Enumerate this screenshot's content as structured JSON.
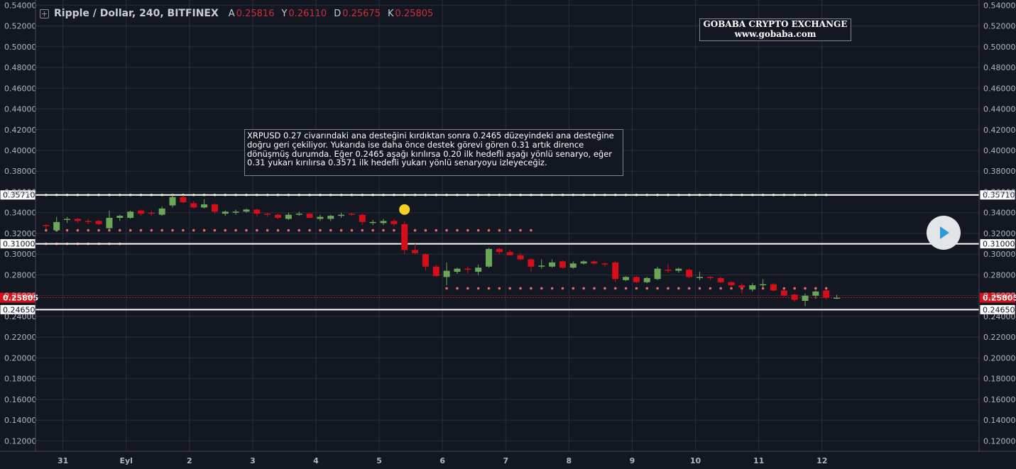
{
  "header": {
    "title": "Ripple / Dollar, 240, BITFINEX",
    "ohlc": [
      {
        "key": "A",
        "value": "0.25816"
      },
      {
        "key": "Y",
        "value": "0.26110"
      },
      {
        "key": "D",
        "value": "0.25675"
      },
      {
        "key": "K",
        "value": "0.25805"
      }
    ]
  },
  "watermark": {
    "line1": "GOBABA CRYPTO EXCHANGE",
    "line2": "www.gobaba.com"
  },
  "annotation": "XRPUSD 0.27 civarındaki ana desteğini kırdıktan sonra 0.2465 düzeyindeki ana desteğine doğru geri çekiliyor. Yukarıda ise daha önce destek görevi gören 0.31 artık dirence dönüşmüş durumda. Eğer 0.2465 aşağı kırılırsa 0.20 ilk hedefli aşağı yönlü senaryo, eğer 0.31 yukarı kırılırsa 0.3571 ilk hedefli yukarı yönlü senaryoyu izleyeceğiz.",
  "colors": {
    "background": "#131722",
    "grid": "#2a2e39",
    "up": "#6ba759",
    "down": "#d60e17",
    "level": "#ffffff",
    "dot_green": "#8fcf73",
    "dot_red": "#e06868",
    "marker": "#f4d21f"
  },
  "chart_data": {
    "type": "candlestick",
    "ylim": [
      0.11,
      0.545
    ],
    "xlim": [
      -1.0,
      88.5
    ],
    "price_axis_ticks": [
      "0.54000",
      "0.52000",
      "0.50000",
      "0.48000",
      "0.46000",
      "0.44000",
      "0.42000",
      "0.40000",
      "0.38000",
      "0.36000",
      "0.34000",
      "0.32000",
      "0.30000",
      "0.28000",
      "0.26000",
      "0.24000",
      "0.22000",
      "0.20000",
      "0.18000",
      "0.16000",
      "0.14000",
      "0.12000"
    ],
    "time_axis_ticks": [
      {
        "label": "31",
        "x": 1.6
      },
      {
        "label": "Eyl",
        "x": 7.6
      },
      {
        "label": "2",
        "x": 13.6
      },
      {
        "label": "3",
        "x": 19.6
      },
      {
        "label": "4",
        "x": 25.6
      },
      {
        "label": "5",
        "x": 31.6
      },
      {
        "label": "6",
        "x": 37.6
      },
      {
        "label": "7",
        "x": 43.6
      },
      {
        "label": "8",
        "x": 49.6
      },
      {
        "label": "9",
        "x": 55.6
      },
      {
        "label": "10",
        "x": 61.6
      },
      {
        "label": "11",
        "x": 67.6
      },
      {
        "label": "12",
        "x": 73.6
      }
    ],
    "horizontal_levels": [
      {
        "value": 0.3571,
        "label": "0.35710"
      },
      {
        "value": 0.31,
        "label": "0.31000"
      },
      {
        "value": 0.2465,
        "label": "0.24650"
      }
    ],
    "last_price": {
      "value": 0.25805,
      "label": "0.25805"
    },
    "candles": [
      [
        0.328,
        0.329,
        0.324,
        0.327
      ],
      [
        0.323,
        0.336,
        0.322,
        0.331
      ],
      [
        0.333,
        0.336,
        0.33,
        0.334
      ],
      [
        0.334,
        0.335,
        0.33,
        0.332
      ],
      [
        0.332,
        0.334,
        0.329,
        0.331
      ],
      [
        0.332,
        0.333,
        0.328,
        0.329
      ],
      [
        0.325,
        0.342,
        0.324,
        0.335
      ],
      [
        0.335,
        0.338,
        0.332,
        0.337
      ],
      [
        0.335,
        0.342,
        0.334,
        0.341
      ],
      [
        0.342,
        0.343,
        0.337,
        0.339
      ],
      [
        0.34,
        0.342,
        0.337,
        0.339
      ],
      [
        0.338,
        0.346,
        0.337,
        0.344
      ],
      [
        0.347,
        0.358,
        0.345,
        0.355
      ],
      [
        0.355,
        0.357,
        0.349,
        0.35
      ],
      [
        0.349,
        0.351,
        0.344,
        0.345
      ],
      [
        0.345,
        0.353,
        0.344,
        0.348
      ],
      [
        0.348,
        0.349,
        0.339,
        0.341
      ],
      [
        0.339,
        0.342,
        0.337,
        0.341
      ],
      [
        0.34,
        0.343,
        0.338,
        0.341
      ],
      [
        0.341,
        0.344,
        0.34,
        0.343
      ],
      [
        0.343,
        0.344,
        0.336,
        0.339
      ],
      [
        0.339,
        0.34,
        0.336,
        0.338
      ],
      [
        0.338,
        0.339,
        0.334,
        0.335
      ],
      [
        0.334,
        0.34,
        0.333,
        0.338
      ],
      [
        0.338,
        0.341,
        0.337,
        0.339
      ],
      [
        0.339,
        0.34,
        0.335,
        0.335
      ],
      [
        0.334,
        0.338,
        0.332,
        0.336
      ],
      [
        0.334,
        0.338,
        0.332,
        0.337
      ],
      [
        0.337,
        0.34,
        0.335,
        0.338
      ],
      [
        0.339,
        0.34,
        0.337,
        0.338
      ],
      [
        0.338,
        0.339,
        0.328,
        0.331
      ],
      [
        0.33,
        0.333,
        0.328,
        0.331
      ],
      [
        0.33,
        0.334,
        0.328,
        0.332
      ],
      [
        0.332,
        0.334,
        0.327,
        0.329
      ],
      [
        0.329,
        0.332,
        0.3,
        0.304
      ],
      [
        0.304,
        0.31,
        0.3,
        0.301
      ],
      [
        0.3,
        0.301,
        0.284,
        0.288
      ],
      [
        0.288,
        0.29,
        0.278,
        0.279
      ],
      [
        0.278,
        0.292,
        0.27,
        0.284
      ],
      [
        0.283,
        0.287,
        0.281,
        0.286
      ],
      [
        0.286,
        0.288,
        0.281,
        0.285
      ],
      [
        0.283,
        0.29,
        0.28,
        0.287
      ],
      [
        0.288,
        0.306,
        0.287,
        0.305
      ],
      [
        0.305,
        0.306,
        0.3,
        0.302
      ],
      [
        0.302,
        0.304,
        0.299,
        0.299
      ],
      [
        0.299,
        0.301,
        0.294,
        0.295
      ],
      [
        0.295,
        0.296,
        0.283,
        0.288
      ],
      [
        0.288,
        0.295,
        0.286,
        0.289
      ],
      [
        0.288,
        0.295,
        0.287,
        0.292
      ],
      [
        0.293,
        0.294,
        0.286,
        0.287
      ],
      [
        0.287,
        0.293,
        0.286,
        0.291
      ],
      [
        0.291,
        0.294,
        0.29,
        0.293
      ],
      [
        0.293,
        0.294,
        0.29,
        0.291
      ],
      [
        0.291,
        0.292,
        0.288,
        0.29
      ],
      [
        0.292,
        0.293,
        0.273,
        0.276
      ],
      [
        0.275,
        0.279,
        0.274,
        0.278
      ],
      [
        0.278,
        0.279,
        0.272,
        0.273
      ],
      [
        0.273,
        0.278,
        0.272,
        0.277
      ],
      [
        0.276,
        0.288,
        0.275,
        0.286
      ],
      [
        0.285,
        0.291,
        0.282,
        0.284
      ],
      [
        0.284,
        0.287,
        0.282,
        0.286
      ],
      [
        0.285,
        0.286,
        0.277,
        0.278
      ],
      [
        0.277,
        0.283,
        0.275,
        0.278
      ],
      [
        0.278,
        0.279,
        0.275,
        0.277
      ],
      [
        0.277,
        0.278,
        0.272,
        0.273
      ],
      [
        0.273,
        0.274,
        0.269,
        0.27
      ],
      [
        0.27,
        0.272,
        0.262,
        0.268
      ],
      [
        0.266,
        0.272,
        0.264,
        0.27
      ],
      [
        0.27,
        0.276,
        0.268,
        0.271
      ],
      [
        0.271,
        0.272,
        0.264,
        0.265
      ],
      [
        0.265,
        0.266,
        0.259,
        0.26
      ],
      [
        0.261,
        0.262,
        0.254,
        0.256
      ],
      [
        0.255,
        0.262,
        0.25,
        0.26
      ],
      [
        0.26,
        0.265,
        0.257,
        0.264
      ],
      [
        0.265,
        0.266,
        0.256,
        0.258
      ],
      [
        0.258,
        0.261,
        0.2567,
        0.25805
      ]
    ],
    "dotted_series": [
      {
        "color": "green",
        "value": 0.3571,
        "x_from": 0,
        "x_to": 74
      },
      {
        "color": "red",
        "value": 0.323,
        "x_from": 0,
        "x_to": 46
      },
      {
        "color": "red",
        "value": 0.31,
        "x_from": 0,
        "x_to": 7
      },
      {
        "color": "red",
        "value": 0.267,
        "x_from": 38,
        "x_to": 74
      }
    ],
    "marker": {
      "x": 34,
      "value": 0.343
    }
  }
}
